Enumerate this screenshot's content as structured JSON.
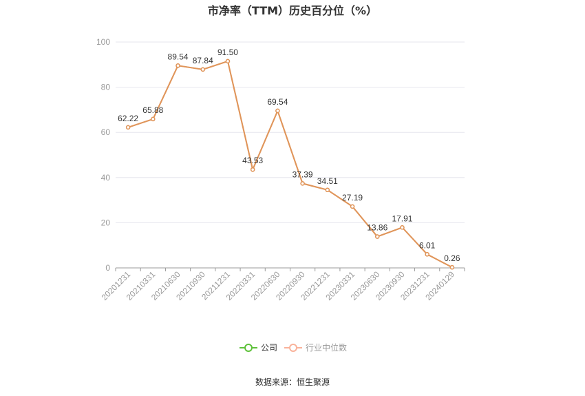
{
  "colors": {
    "company": "#5ec13a",
    "industry": "#f9b29a",
    "line_overlay": "#e0955a",
    "grid": "#e6e6ee",
    "axis": "#999999"
  },
  "footer": {
    "source": "数据来源：恒生聚源"
  },
  "chart_data": {
    "type": "line",
    "title": "市净率（TTM）历史百分位（%）",
    "xlabel": "",
    "ylabel": "",
    "ylim": [
      0,
      100
    ],
    "yticks": [
      "0",
      "20",
      "40",
      "60",
      "80",
      "100"
    ],
    "grid": true,
    "legend_position": "bottom-center",
    "categories": [
      "20201231",
      "20210331",
      "20210630",
      "20210930",
      "20211231",
      "20220331",
      "20220630",
      "20220930",
      "20221231",
      "20230331",
      "20230630",
      "20230930",
      "20231231",
      "20240129"
    ],
    "series": [
      {
        "name": "公司",
        "values": [
          62.22,
          65.88,
          89.54,
          87.84,
          91.5,
          43.53,
          69.54,
          37.39,
          34.51,
          27.19,
          13.86,
          17.91,
          6.01,
          0.26
        ]
      },
      {
        "name": "行业中位数",
        "values": [
          62.22,
          65.88,
          89.54,
          87.84,
          91.5,
          43.53,
          69.54,
          37.39,
          34.51,
          27.19,
          13.86,
          17.91,
          6.01,
          0.26
        ]
      }
    ],
    "data_labels": [
      "62.22",
      "65.88",
      "89.54",
      "87.84",
      "91.50",
      "43.53",
      "69.54",
      "37.39",
      "34.51",
      "27.19",
      "13.86",
      "17.91",
      "6.01",
      "0.26"
    ]
  }
}
